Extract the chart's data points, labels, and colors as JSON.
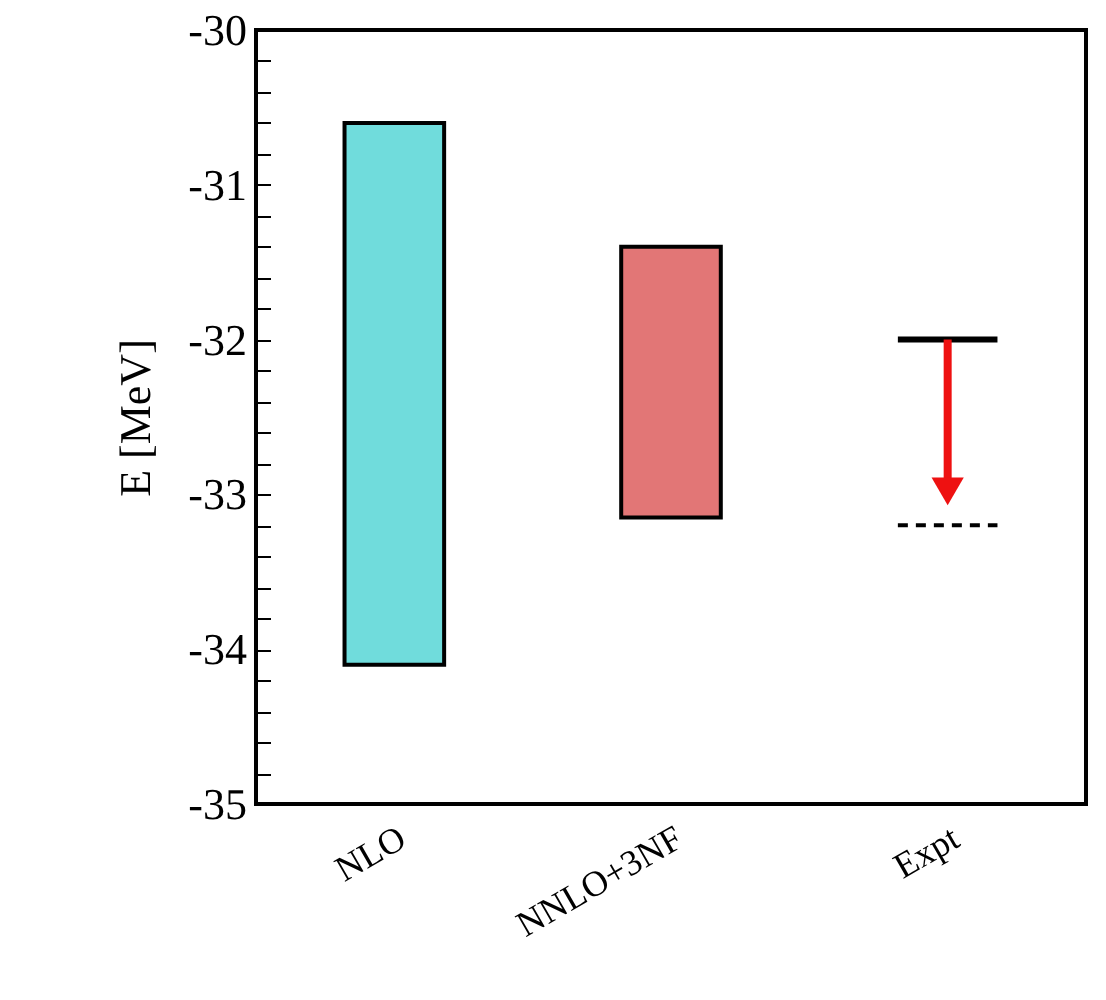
{
  "chart_data": {
    "type": "bar",
    "ylabel": "E [MeV]",
    "categories": [
      "NLO",
      "NNLO+3NF",
      "Expt"
    ],
    "ylim": [
      -35,
      -30
    ],
    "grid": false,
    "yticks": [
      -35,
      {
        "value": -34.8,
        "label": null
      },
      {
        "value": -34.6,
        "label": null
      },
      {
        "value": -34.4,
        "label": null
      },
      {
        "value": -34.2,
        "label": null
      },
      -34,
      {
        "value": -33.8,
        "label": null
      },
      {
        "value": -33.6,
        "label": null
      },
      {
        "value": -33.4,
        "label": null
      },
      {
        "value": -33.2,
        "label": null
      },
      -33,
      {
        "value": -32.8,
        "label": null
      },
      {
        "value": -32.6,
        "label": null
      },
      {
        "value": -32.4,
        "label": null
      },
      {
        "value": -32.2,
        "label": null
      },
      -32,
      {
        "value": -31.8,
        "label": null
      },
      {
        "value": -31.6,
        "label": null
      },
      {
        "value": -31.4,
        "label": null
      },
      {
        "value": -31.2,
        "label": null
      },
      -31,
      {
        "value": -30.8,
        "label": null
      },
      {
        "value": -30.6,
        "label": null
      },
      {
        "value": -30.4,
        "label": null
      },
      {
        "value": -30.2,
        "label": null
      },
      -30
    ],
    "series": [
      {
        "values": [
          3.5,
          1.75,
          null
        ],
        "base": [
          -34.1,
          -33.15,
          null
        ],
        "colors": [
          "#40d0d0",
          "#d84848",
          null
        ]
      }
    ],
    "ref_lines": [
      {
        "axis": "y",
        "value": -32,
        "color": "#000000",
        "line_style": "solid"
      },
      {
        "axis": "y",
        "value": -33.2,
        "color": "#000000",
        "line_style": "dashed"
      }
    ]
  }
}
